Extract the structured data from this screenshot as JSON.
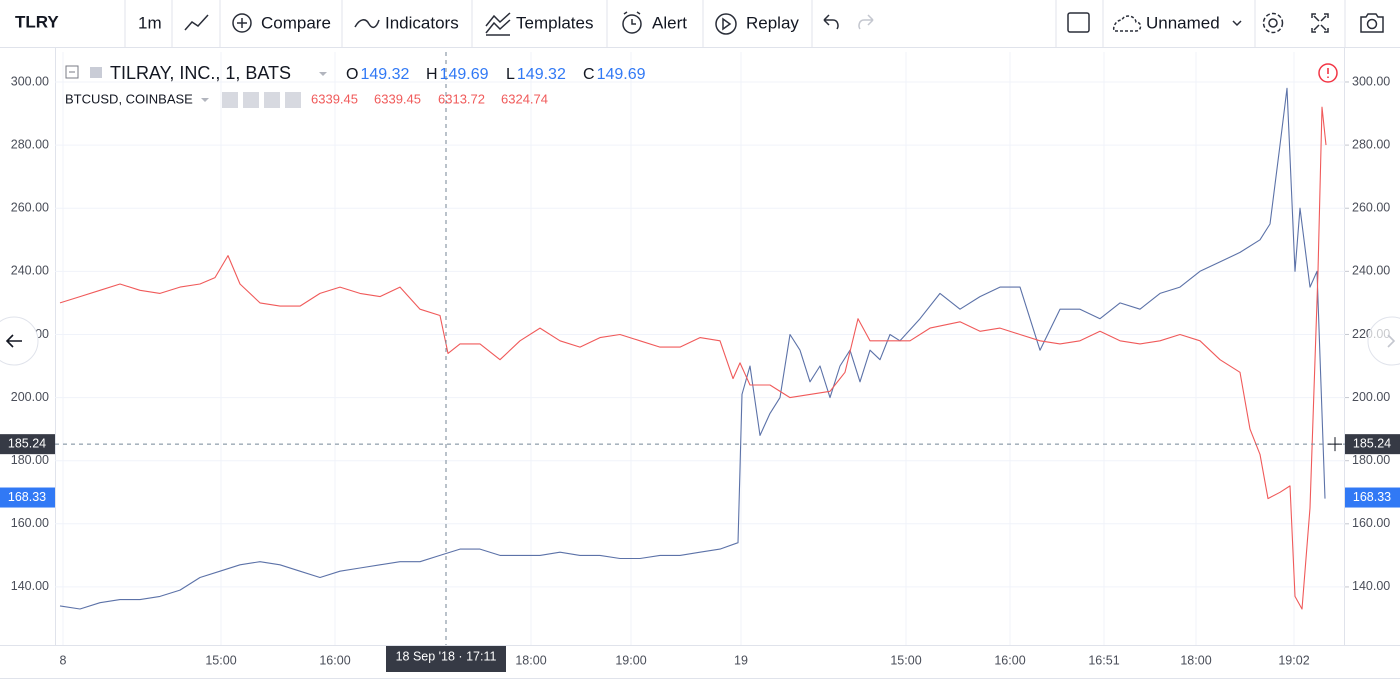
{
  "toolbar": {
    "symbol": "TLRY",
    "interval": "1m",
    "buttons": [
      "Compare",
      "Indicators",
      "Templates",
      "Alert",
      "Replay"
    ],
    "layout_name": "Unnamed"
  },
  "chart_data": {
    "type": "line",
    "xlim": [
      0,
      129
    ],
    "ylim": [
      121.6,
      309.5
    ],
    "y2lim": [
      121.6,
      309.5
    ],
    "grid": true,
    "xticks": [
      {
        "value": 0.8,
        "label": "8"
      },
      {
        "value": 16.6,
        "label": "15:00"
      },
      {
        "value": 28,
        "label": "16:00"
      },
      {
        "value": 47.6,
        "label": "18:00"
      },
      {
        "value": 57.6,
        "label": "19:00"
      },
      {
        "value": 68.6,
        "label": "19"
      },
      {
        "value": 85.1,
        "label": "15:00"
      },
      {
        "value": 95.5,
        "label": "16:00"
      },
      {
        "value": 104.9,
        "label": "16:51"
      },
      {
        "value": 114.1,
        "label": "18:00"
      },
      {
        "value": 123.9,
        "label": "19:02"
      }
    ],
    "yticks": [
      {
        "value": 140,
        "label": "140.00"
      },
      {
        "value": 160,
        "label": "160.00"
      },
      {
        "value": 180,
        "label": "180.00"
      },
      {
        "value": 200,
        "label": "200.00"
      },
      {
        "value": 220,
        "label": "220.00"
      },
      {
        "value": 240,
        "label": "240.00"
      },
      {
        "value": 260,
        "label": "260.00"
      },
      {
        "value": 280,
        "label": "280.00"
      },
      {
        "value": 300,
        "label": "300.00"
      }
    ],
    "y2ticks": [
      {
        "value": 140,
        "label": "140.00"
      },
      {
        "value": 160,
        "label": "160.00"
      },
      {
        "value": 180,
        "label": "180.00"
      },
      {
        "value": 200,
        "label": "200.00"
      },
      {
        "value": 220,
        "label": "220.00"
      },
      {
        "value": 240,
        "label": "240.00"
      },
      {
        "value": 260,
        "label": "260.00"
      },
      {
        "value": 280,
        "label": "280.00"
      },
      {
        "value": 300,
        "label": "300.00"
      }
    ],
    "crosshair": {
      "x": 39.1,
      "x_label": "18 Sep '18 · 17:11",
      "y": 185.24
    },
    "last_price": 168.33,
    "series": [
      {
        "name": "TILRAY, INC., 1, BATS",
        "color": "#5c72a8",
        "ohlc": [
          {
            "label": "O",
            "value": 149.32
          },
          {
            "label": "H",
            "value": 149.69
          },
          {
            "label": "L",
            "value": 149.32
          },
          {
            "label": "C",
            "value": 149.69
          }
        ],
        "x": [
          0.5,
          2.5,
          4.5,
          6.5,
          8.5,
          10.5,
          12.5,
          14.5,
          16.5,
          18.5,
          20.5,
          22.5,
          24.5,
          26.5,
          28.5,
          30.5,
          32.5,
          34.5,
          36.5,
          38.5,
          40.5,
          42.5,
          44.5,
          46.5,
          48.5,
          50.5,
          52.5,
          54.5,
          56.5,
          58.5,
          60.5,
          62.5,
          64.5,
          66.5,
          68.3,
          68.7,
          69.5,
          70.5,
          71.5,
          72.5,
          73.5,
          74.5,
          75.5,
          76.5,
          77.5,
          78.5,
          79.5,
          80.5,
          81.5,
          82.5,
          83.5,
          84.5,
          86.5,
          88.5,
          90.5,
          92.5,
          94.5,
          96.5,
          98.5,
          100.5,
          102.5,
          104.5,
          106.5,
          108.5,
          110.5,
          112.5,
          114.5,
          116.5,
          118.5,
          120.5,
          121.5,
          122.5,
          123.2,
          124,
          124.5,
          125.5,
          126.2,
          127
        ],
        "values": [
          134,
          133,
          135,
          136,
          136,
          137,
          139,
          143,
          145,
          147,
          148,
          147,
          145,
          143,
          145,
          146,
          147,
          148,
          148,
          150,
          152,
          152,
          150,
          150,
          150,
          151,
          150,
          150,
          149,
          149,
          150,
          150,
          151,
          152,
          154,
          201,
          210,
          188,
          195,
          200,
          220,
          215,
          205,
          210,
          200,
          210,
          215,
          205,
          215,
          212,
          220,
          218,
          225,
          233,
          228,
          232,
          235,
          235,
          215,
          228,
          228,
          225,
          230,
          228,
          233,
          235,
          240,
          243,
          246,
          250,
          255,
          280,
          298,
          240,
          260,
          235,
          240,
          168
        ]
      },
      {
        "name": "BTCUSD, COINBASE",
        "color": "#f05a5a",
        "axis": "y2",
        "ohlc": [
          {
            "value": 6339.45
          },
          {
            "value": 6339.45
          },
          {
            "value": 6313.72
          },
          {
            "value": 6324.74
          }
        ],
        "x": [
          0.5,
          2.5,
          4.5,
          6.5,
          8.5,
          10.5,
          12.5,
          14.5,
          16,
          17.3,
          18.5,
          20.5,
          22.5,
          24.5,
          26.5,
          28.5,
          30.5,
          32.5,
          34.5,
          36.5,
          38.5,
          39.3,
          40.5,
          42.5,
          44.5,
          46.5,
          48.5,
          50.5,
          52.5,
          54.5,
          56.5,
          58.5,
          60.5,
          62.5,
          64.5,
          66.5,
          67.8,
          68.5,
          69.5,
          71.5,
          73.5,
          75.5,
          77.5,
          79,
          80.3,
          81.5,
          83.5,
          85.5,
          87.5,
          90.5,
          92.5,
          94.5,
          96.5,
          98.5,
          100.5,
          102.5,
          104.5,
          106.5,
          108.5,
          110.5,
          112.5,
          114.5,
          116.5,
          118.5,
          119.5,
          120.5,
          121.3,
          122.5,
          123.5,
          124,
          124.7,
          125.5,
          126.3,
          126.7,
          127.1
        ],
        "values": [
          230,
          232,
          234,
          236,
          234,
          233,
          235,
          236,
          238,
          245,
          236,
          230,
          229,
          229,
          233,
          235,
          233,
          232,
          235,
          228,
          226,
          214,
          217,
          217,
          212,
          218,
          222,
          218,
          216,
          219,
          220,
          218,
          216,
          216,
          219,
          218,
          206,
          211,
          204,
          204,
          200,
          201,
          202,
          208,
          225,
          218,
          218,
          218,
          222,
          224,
          221,
          222,
          220,
          218,
          217,
          218,
          221,
          218,
          217,
          218,
          220,
          218,
          212,
          208,
          190,
          182,
          168,
          170,
          172,
          137,
          133,
          165,
          240,
          292,
          280
        ]
      }
    ]
  }
}
